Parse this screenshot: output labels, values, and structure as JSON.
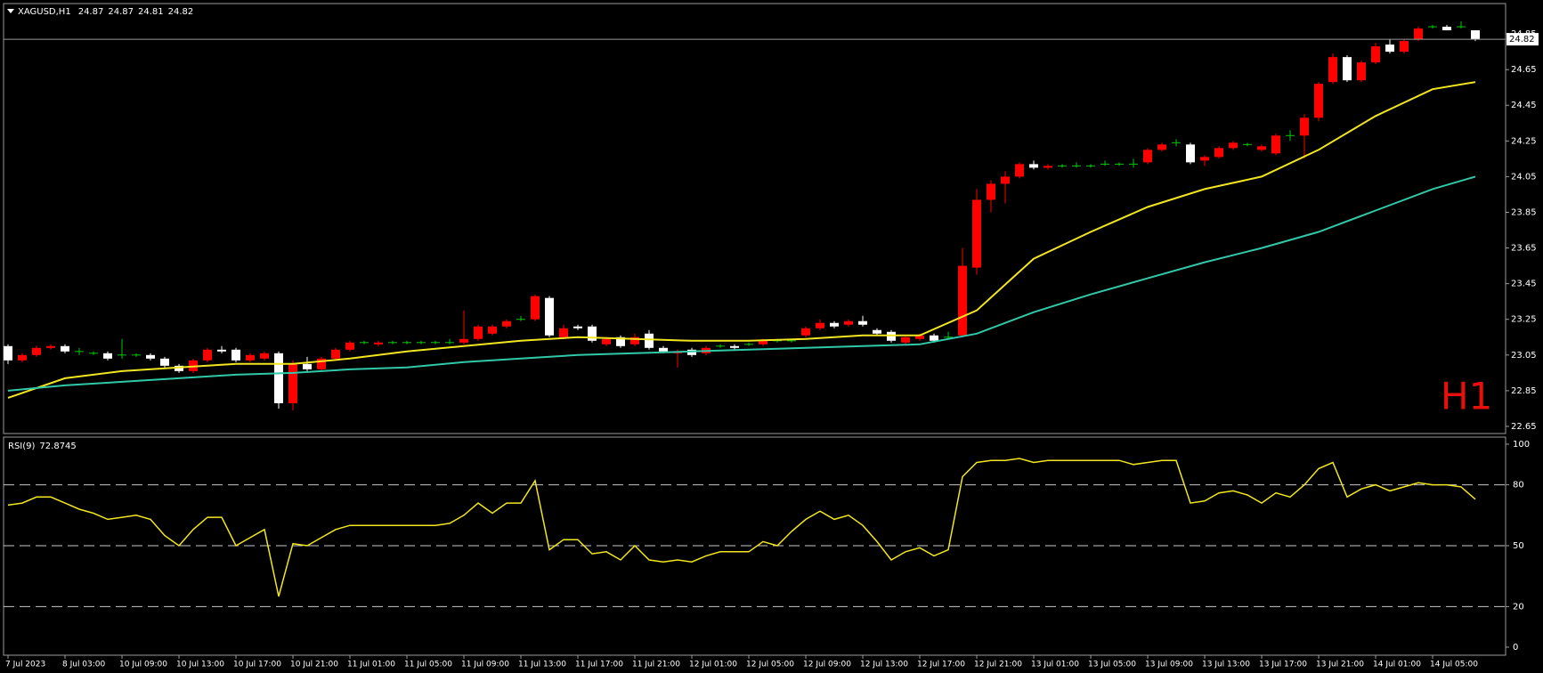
{
  "chart_data": [
    {
      "type": "candlestick",
      "title": "XAGUSD,H1",
      "timeframe_label": "H1",
      "up_color": "#ff0000",
      "down_color": "#ffffff",
      "doji_color": "#00c800",
      "open": [
        23.1,
        23.02,
        23.05,
        23.09,
        23.1,
        23.07,
        23.06,
        23.06,
        23.05,
        23.05,
        23.05,
        23.03,
        22.99,
        22.96,
        23.02,
        23.08,
        23.08,
        23.02,
        23.03,
        23.06,
        22.78,
        23.0,
        22.97,
        23.03,
        23.08,
        23.12,
        23.11,
        23.12,
        23.12,
        23.12,
        23.12,
        23.12,
        23.12,
        23.14,
        23.17,
        23.21,
        23.25,
        23.25,
        23.37,
        23.15,
        23.21,
        23.21,
        23.11,
        23.15,
        23.11,
        23.17,
        23.09,
        23.06,
        23.08,
        23.06,
        23.1,
        23.1,
        23.11,
        23.11,
        23.13,
        23.13,
        23.16,
        23.2,
        23.23,
        23.22,
        23.24,
        23.19,
        23.18,
        23.12,
        23.14,
        23.16,
        23.15,
        23.16,
        23.54,
        23.92,
        24.01,
        24.05,
        24.12,
        24.1,
        24.11,
        24.11,
        24.11,
        24.12,
        24.12,
        24.12,
        24.13,
        24.2,
        24.24,
        24.23,
        24.14,
        24.16,
        24.21,
        24.23,
        24.2,
        24.18,
        24.28,
        24.28,
        24.38,
        24.58,
        24.72,
        24.59,
        24.69,
        24.79,
        24.75,
        24.82,
        24.89,
        24.89,
        24.89,
        24.87
      ],
      "high": [
        23.11,
        23.06,
        23.1,
        23.11,
        23.11,
        23.09,
        23.07,
        23.07,
        23.14,
        23.06,
        23.06,
        23.04,
        23.0,
        23.03,
        23.09,
        23.1,
        23.09,
        23.06,
        23.07,
        23.07,
        23.02,
        23.04,
        23.04,
        23.09,
        23.13,
        23.13,
        23.13,
        23.13,
        23.13,
        23.13,
        23.13,
        23.14,
        23.3,
        23.22,
        23.22,
        23.25,
        23.27,
        23.39,
        23.38,
        23.22,
        23.22,
        23.22,
        23.15,
        23.16,
        23.17,
        23.19,
        23.1,
        23.08,
        23.09,
        23.1,
        23.11,
        23.11,
        23.12,
        23.14,
        23.14,
        23.14,
        23.21,
        23.25,
        23.24,
        23.25,
        23.27,
        23.2,
        23.19,
        23.16,
        23.17,
        23.17,
        23.18,
        23.65,
        23.98,
        24.03,
        24.08,
        24.13,
        24.14,
        24.12,
        24.12,
        24.13,
        24.12,
        24.14,
        24.13,
        24.15,
        24.21,
        24.24,
        24.26,
        24.24,
        24.17,
        24.22,
        24.25,
        24.24,
        24.23,
        24.29,
        24.31,
        24.4,
        24.58,
        24.74,
        24.73,
        24.7,
        24.8,
        24.82,
        24.82,
        24.89,
        24.9,
        24.9,
        24.92,
        24.87
      ],
      "low": [
        23.0,
        23.01,
        23.04,
        23.08,
        23.06,
        23.05,
        23.05,
        23.02,
        23.03,
        23.04,
        23.02,
        22.98,
        22.95,
        22.95,
        23.01,
        23.06,
        23.01,
        23.01,
        23.02,
        22.75,
        22.74,
        22.96,
        22.96,
        23.02,
        23.07,
        23.11,
        23.1,
        23.11,
        23.11,
        23.11,
        23.11,
        23.11,
        23.11,
        23.13,
        23.16,
        23.2,
        23.24,
        23.24,
        23.15,
        23.14,
        23.19,
        23.12,
        23.1,
        23.09,
        23.1,
        23.08,
        23.06,
        22.98,
        23.04,
        23.05,
        23.09,
        23.08,
        23.1,
        23.1,
        23.12,
        23.12,
        23.15,
        23.19,
        23.2,
        23.21,
        23.21,
        23.16,
        23.12,
        23.11,
        23.13,
        23.12,
        23.14,
        23.15,
        23.5,
        23.85,
        23.9,
        24.04,
        24.09,
        24.09,
        24.1,
        24.1,
        24.1,
        24.11,
        24.11,
        24.1,
        24.12,
        24.19,
        24.22,
        24.12,
        24.11,
        24.15,
        24.2,
        24.22,
        24.19,
        24.17,
        24.25,
        24.15,
        24.36,
        24.57,
        24.58,
        24.58,
        24.68,
        24.74,
        24.74,
        24.81,
        24.88,
        24.87,
        24.88,
        24.81
      ],
      "close": [
        23.02,
        23.05,
        23.09,
        23.1,
        23.07,
        23.07,
        23.06,
        23.03,
        23.05,
        23.05,
        23.03,
        22.99,
        22.96,
        23.02,
        23.08,
        23.07,
        23.02,
        23.05,
        23.06,
        22.78,
        23.0,
        22.97,
        23.03,
        23.08,
        23.12,
        23.12,
        23.12,
        23.12,
        23.12,
        23.12,
        23.12,
        23.12,
        23.14,
        23.21,
        23.21,
        23.24,
        23.25,
        23.38,
        23.16,
        23.2,
        23.2,
        23.13,
        23.14,
        23.1,
        23.15,
        23.09,
        23.07,
        23.07,
        23.05,
        23.09,
        23.1,
        23.09,
        23.11,
        23.13,
        23.13,
        23.13,
        23.2,
        23.23,
        23.21,
        23.24,
        23.22,
        23.17,
        23.13,
        23.15,
        23.16,
        23.13,
        23.15,
        23.55,
        23.92,
        24.01,
        24.05,
        24.12,
        24.1,
        24.11,
        24.11,
        24.11,
        24.11,
        24.12,
        24.12,
        24.12,
        24.2,
        24.23,
        24.24,
        24.13,
        24.16,
        24.21,
        24.24,
        24.23,
        24.22,
        24.28,
        24.28,
        24.38,
        24.57,
        24.72,
        24.59,
        24.69,
        24.78,
        24.75,
        24.81,
        24.88,
        24.89,
        24.87,
        24.89,
        24.82
      ],
      "series": [
        {
          "color": "#f2e620",
          "x": [
            0,
            4,
            8,
            12,
            16,
            20,
            24,
            28,
            32,
            36,
            40,
            44,
            48,
            52,
            56,
            60,
            64,
            68,
            72,
            76,
            80,
            84,
            88,
            92,
            96,
            100,
            103
          ],
          "values": [
            22.81,
            22.92,
            22.96,
            22.98,
            23.0,
            23.0,
            23.03,
            23.07,
            23.1,
            23.13,
            23.15,
            23.14,
            23.13,
            23.13,
            23.14,
            23.16,
            23.16,
            23.3,
            23.59,
            23.74,
            23.88,
            23.98,
            24.05,
            24.2,
            24.39,
            24.54,
            24.58
          ]
        },
        {
          "color": "#30c8a8",
          "x": [
            0,
            4,
            8,
            12,
            16,
            20,
            24,
            28,
            32,
            36,
            40,
            44,
            48,
            52,
            56,
            60,
            64,
            68,
            72,
            76,
            80,
            84,
            88,
            92,
            96,
            100,
            103
          ],
          "values": [
            22.85,
            22.88,
            22.9,
            22.92,
            22.94,
            22.95,
            22.97,
            22.98,
            23.01,
            23.03,
            23.05,
            23.06,
            23.07,
            23.08,
            23.09,
            23.1,
            23.11,
            23.17,
            23.29,
            23.39,
            23.48,
            23.57,
            23.65,
            23.74,
            23.86,
            23.98,
            24.05
          ]
        }
      ],
      "ylim": [
        22.61,
        25.01
      ],
      "yticks": [
        22.65,
        22.85,
        23.05,
        23.25,
        23.45,
        23.65,
        23.85,
        24.05,
        24.25,
        24.45,
        24.65,
        24.85
      ]
    },
    {
      "type": "line",
      "title": "RSI(9)",
      "color": "#f2e620",
      "values": [
        70,
        71,
        74,
        74,
        71,
        68,
        66,
        63,
        64,
        65,
        63,
        55,
        50,
        58,
        64,
        64,
        50,
        54,
        58,
        25,
        51,
        50,
        54,
        58,
        60,
        60,
        60,
        60,
        60,
        60,
        60,
        61,
        65,
        71,
        66,
        71,
        71,
        82,
        48,
        53,
        53,
        46,
        47,
        43,
        50,
        43,
        42,
        43,
        42,
        45,
        47,
        47,
        47,
        52,
        50,
        57,
        63,
        67,
        63,
        65,
        60,
        52,
        43,
        47,
        49,
        45,
        48,
        84,
        91,
        92,
        92,
        93,
        91,
        92,
        92,
        92,
        92,
        92,
        92,
        90,
        91,
        92,
        92,
        71,
        72,
        76,
        77,
        75,
        71,
        76,
        74,
        80,
        88,
        91,
        74,
        78,
        80,
        77,
        79,
        81,
        80,
        80,
        79,
        72.8745
      ],
      "categories": [
        "7 Jul 2023",
        null,
        null,
        null,
        "8 Jul 03:00",
        null,
        null,
        null,
        "10 Jul 09:00",
        null,
        null,
        null,
        "10 Jul 13:00",
        null,
        null,
        null,
        "10 Jul 17:00",
        null,
        null,
        null,
        "10 Jul 21:00",
        null,
        null,
        null,
        "11 Jul 01:00",
        null,
        null,
        null,
        "11 Jul 05:00",
        null,
        null,
        null,
        "11 Jul 09:00",
        null,
        null,
        null,
        "11 Jul 13:00",
        null,
        null,
        null,
        "11 Jul 17:00",
        null,
        null,
        null,
        "11 Jul 21:00",
        null,
        null,
        null,
        "12 Jul 01:00",
        null,
        null,
        null,
        "12 Jul 05:00",
        null,
        null,
        null,
        "12 Jul 09:00",
        null,
        null,
        null,
        "12 Jul 13:00",
        null,
        null,
        null,
        "12 Jul 17:00",
        null,
        null,
        null,
        "12 Jul 21:00",
        null,
        null,
        null,
        "13 Jul 01:00",
        null,
        null,
        null,
        "13 Jul 05:00",
        null,
        null,
        null,
        "13 Jul 09:00",
        null,
        null,
        null,
        "13 Jul 13:00",
        null,
        null,
        null,
        "13 Jul 17:00",
        null,
        null,
        null,
        "13 Jul 21:00",
        null,
        null,
        null,
        "14 Jul 01:00",
        null,
        null,
        null,
        "14 Jul 05:00",
        null,
        null,
        null
      ],
      "ylim": [
        0,
        100
      ],
      "yticks": [
        0,
        20,
        50,
        80,
        100
      ],
      "levels": [
        20,
        50,
        80
      ]
    }
  ]
}
